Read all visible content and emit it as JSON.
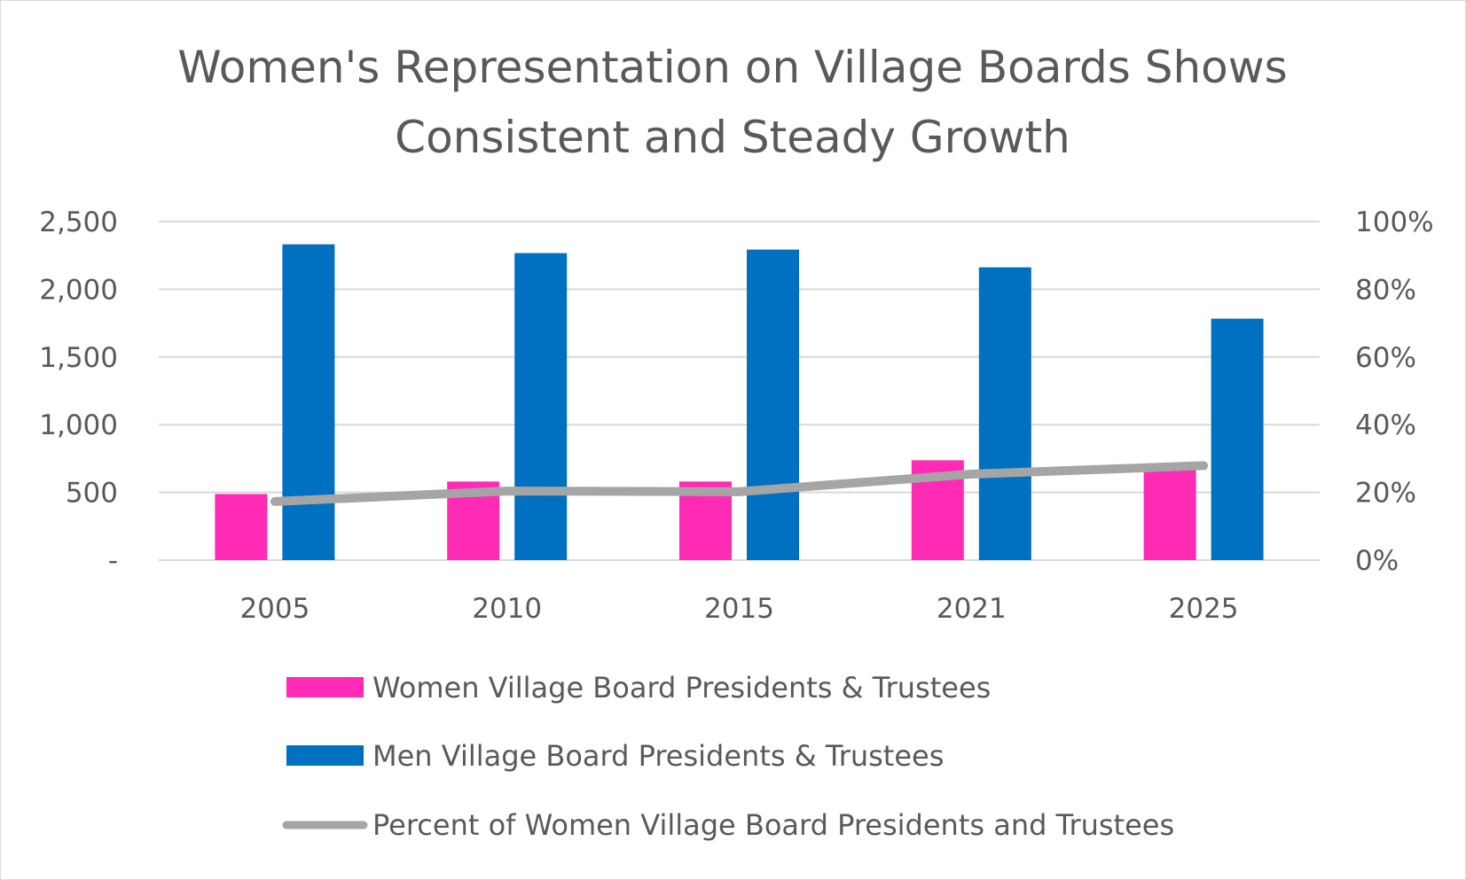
{
  "chart_data": {
    "type": "bar",
    "title": "Women's Representation on Village Boards Shows Consistent and Steady Growth",
    "title_lines": [
      "Women's Representation on Village Boards Shows",
      "Consistent and Steady Growth"
    ],
    "categories": [
      "2005",
      "2010",
      "2015",
      "2021",
      "2025"
    ],
    "series": [
      {
        "name": "Women Village Board Presidents & Trustees",
        "type": "bar",
        "axis": "left",
        "color": "#FF2BB5",
        "values": [
          488,
          580,
          580,
          737,
          690
        ]
      },
      {
        "name": "Men Village Board Presidents & Trustees",
        "type": "bar",
        "axis": "left",
        "color": "#0070C0",
        "values": [
          2332,
          2267,
          2293,
          2162,
          1783
        ]
      },
      {
        "name": "Percent of Women Village Board Presidents and Trustees",
        "type": "line",
        "axis": "right",
        "color": "#A5A5A5",
        "values": [
          17.3,
          20.4,
          20.2,
          25.4,
          27.9
        ]
      }
    ],
    "ylim": [
      0,
      2500
    ],
    "y_ticks": [
      0,
      500,
      1000,
      1500,
      2000,
      2500
    ],
    "y_tick_labels": [
      "-",
      "500",
      "1,000",
      "1,500",
      "2,000",
      "2,500"
    ],
    "y2lim": [
      0,
      100
    ],
    "y2_tick_labels": [
      "0%",
      "20%",
      "40%",
      "60%",
      "80%",
      "100%"
    ],
    "grid": true,
    "legend_position": "bottom"
  }
}
